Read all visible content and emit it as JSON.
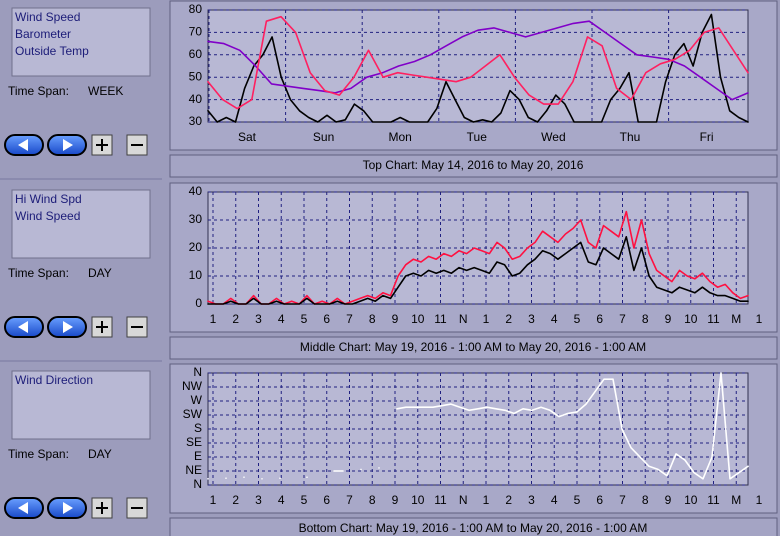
{
  "panels": [
    {
      "legend": [
        "Wind Speed",
        "Barometer",
        "Outside Temp"
      ],
      "time_span_label": "Time Span:",
      "time_span": "WEEK",
      "caption": "Top Chart:  May 14, 2016  to  May 20, 2016",
      "chart": {
        "type": "line",
        "ylim": [
          30,
          80
        ],
        "yticks": [
          30,
          40,
          50,
          60,
          70,
          80
        ],
        "grid": true,
        "categories": [
          "Sat",
          "Sun",
          "Mon",
          "Tue",
          "Wed",
          "Thu",
          "Fri"
        ],
        "series": [
          {
            "name": "Wind Speed",
            "color": "#000000",
            "values": [
              35,
              30,
              32,
              30,
              45,
              55,
              60,
              68,
              50,
              40,
              35,
              32,
              30,
              33,
              30,
              31,
              38,
              35,
              30,
              30,
              30,
              32,
              30,
              30,
              30,
              36,
              48,
              40,
              32,
              30,
              31,
              30,
              34,
              44,
              40,
              32,
              30,
              35,
              42,
              38,
              30,
              30,
              30,
              30,
              40,
              45,
              52,
              30,
              30,
              30,
              48,
              60,
              65,
              55,
              70,
              78,
              50,
              35,
              32,
              30
            ]
          },
          {
            "name": "Barometer",
            "color": "#8000c8",
            "values": [
              66,
              65,
              62,
              55,
              47,
              46,
              45,
              44,
              43,
              45,
              50,
              52,
              55,
              57,
              60,
              64,
              68,
              71,
              72,
              70,
              68,
              70,
              72,
              74,
              75,
              70,
              65,
              60,
              59,
              58,
              55,
              50,
              45,
              40,
              43
            ]
          },
          {
            "name": "Outside Temp",
            "color": "#ff2060",
            "values": [
              48,
              40,
              36,
              40,
              75,
              77,
              70,
              52,
              44,
              42,
              50,
              62,
              50,
              52,
              51,
              50,
              49,
              48,
              50,
              55,
              60,
              50,
              42,
              38,
              38,
              48,
              68,
              64,
              45,
              40,
              52,
              56,
              58,
              62,
              70,
              72,
              62,
              52
            ]
          }
        ]
      }
    },
    {
      "legend": [
        "Hi Wind Spd",
        "Wind Speed"
      ],
      "time_span_label": "Time Span:",
      "time_span": "DAY",
      "caption": "Middle Chart:  May 19, 2016 - 1:00 AM  to  May 20, 2016 - 1:00 AM",
      "chart": {
        "type": "line",
        "ylim": [
          0,
          40
        ],
        "yticks": [
          0,
          10,
          20,
          30,
          40
        ],
        "grid": true,
        "categories": [
          "1",
          "2",
          "3",
          "4",
          "5",
          "6",
          "7",
          "8",
          "9",
          "10",
          "11",
          "N",
          "1",
          "2",
          "3",
          "4",
          "5",
          "6",
          "7",
          "8",
          "9",
          "10",
          "11",
          "M",
          "1"
        ],
        "series": [
          {
            "name": "Hi Wind Spd",
            "color": "#ff1040",
            "values": [
              1,
              0,
              0,
              2,
              0,
              0,
              3,
              0,
              0,
              2,
              0,
              1,
              0,
              3,
              0,
              1,
              0,
              2,
              0,
              1,
              2,
              3,
              2,
              4,
              3,
              10,
              14,
              16,
              15,
              17,
              16,
              18,
              17,
              19,
              18,
              20,
              19,
              18,
              22,
              20,
              16,
              17,
              20,
              22,
              26,
              24,
              22,
              25,
              27,
              30,
              22,
              20,
              28,
              26,
              24,
              33,
              20,
              30,
              18,
              12,
              10,
              8,
              12,
              10,
              9,
              11,
              8,
              6,
              7,
              4,
              2,
              3
            ]
          },
          {
            "name": "Wind Speed",
            "color": "#000000",
            "values": [
              0,
              0,
              0,
              1,
              0,
              0,
              2,
              0,
              0,
              1,
              0,
              0,
              0,
              2,
              0,
              0,
              0,
              1,
              0,
              0,
              1,
              2,
              1,
              3,
              2,
              6,
              10,
              11,
              10,
              12,
              11,
              12,
              11,
              13,
              12,
              13,
              12,
              11,
              15,
              14,
              10,
              11,
              14,
              16,
              19,
              18,
              16,
              18,
              20,
              22,
              15,
              14,
              20,
              18,
              16,
              24,
              12,
              20,
              10,
              6,
              5,
              4,
              6,
              5,
              4,
              6,
              4,
              3,
              3,
              2,
              1,
              1
            ]
          }
        ]
      }
    },
    {
      "legend": [
        "Wind Direction"
      ],
      "time_span_label": "Time Span:",
      "time_span": "DAY",
      "caption": "Bottom Chart:  May 19, 2016 - 1:00 AM  to  May 20, 2016 - 1:00 AM",
      "chart": {
        "type": "line",
        "ylim": [
          0,
          360
        ],
        "grid": true,
        "yticks": [
          {
            "value": 0,
            "label": "N"
          },
          {
            "value": 45,
            "label": "NE"
          },
          {
            "value": 90,
            "label": "E"
          },
          {
            "value": 135,
            "label": "SE"
          },
          {
            "value": 180,
            "label": "S"
          },
          {
            "value": 225,
            "label": "SW"
          },
          {
            "value": 270,
            "label": "W"
          },
          {
            "value": 315,
            "label": "NW"
          },
          {
            "value": 360,
            "label": "N"
          }
        ],
        "categories": [
          "1",
          "2",
          "3",
          "4",
          "5",
          "6",
          "7",
          "8",
          "9",
          "10",
          "11",
          "N",
          "1",
          "2",
          "3",
          "4",
          "5",
          "6",
          "7",
          "8",
          "9",
          "10",
          "11",
          "M",
          "1"
        ],
        "series": [
          {
            "name": "Wind Direction",
            "color": "#ffffff",
            "values": [
              20,
              null,
              22,
              null,
              25,
              null,
              20,
              null,
              22,
              null,
              null,
              25,
              null,
              null,
              45,
              45,
              null,
              50,
              null,
              55,
              null,
              245,
              250,
              250,
              250,
              250,
              255,
              260,
              250,
              240,
              245,
              250,
              245,
              240,
              230,
              245,
              240,
              250,
              240,
              220,
              230,
              235,
              260,
              300,
              340,
              340,
              180,
              120,
              90,
              60,
              50,
              30,
              100,
              80,
              40,
              20,
              90,
              360,
              20,
              40,
              60
            ]
          }
        ]
      }
    }
  ]
}
